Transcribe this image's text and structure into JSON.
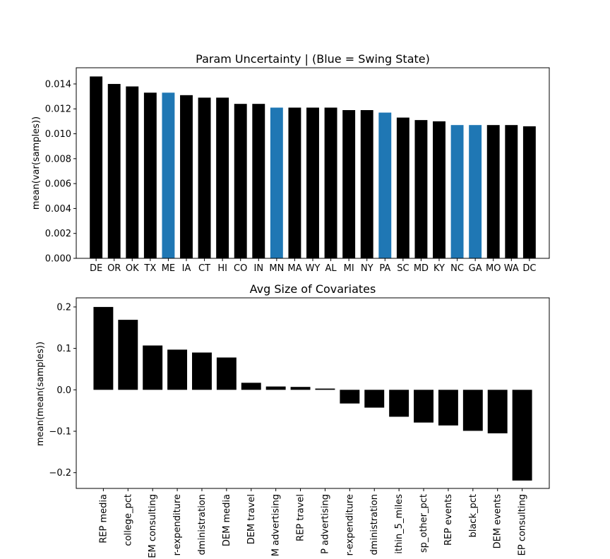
{
  "chart_data": [
    {
      "type": "bar",
      "title": "Param Uncertainty | (Blue = Swing State)",
      "xlabel": "",
      "ylabel": "mean(var(samples))",
      "ylim": [
        0,
        0.0153
      ],
      "yticks": [
        "0.000",
        "0.002",
        "0.004",
        "0.006",
        "0.008",
        "0.010",
        "0.012",
        "0.014"
      ],
      "categories": [
        "DE",
        "OR",
        "OK",
        "TX",
        "ME",
        "IA",
        "CT",
        "HI",
        "CO",
        "IN",
        "MN",
        "MA",
        "WY",
        "AL",
        "MI",
        "NY",
        "PA",
        "SC",
        "MD",
        "KY",
        "NC",
        "GA",
        "MO",
        "WA",
        "DC"
      ],
      "values": [
        0.0146,
        0.014,
        0.0138,
        0.0133,
        0.0133,
        0.0131,
        0.0129,
        0.0129,
        0.0124,
        0.0124,
        0.0121,
        0.0121,
        0.0121,
        0.0121,
        0.0119,
        0.0119,
        0.0117,
        0.0113,
        0.0111,
        0.011,
        0.0107,
        0.0107,
        0.0107,
        0.0107,
        0.0106
      ],
      "swing": [
        false,
        false,
        false,
        false,
        true,
        false,
        false,
        false,
        false,
        false,
        true,
        false,
        false,
        false,
        false,
        false,
        true,
        false,
        false,
        false,
        true,
        true,
        false,
        false,
        false
      ],
      "colors": {
        "default": "#000000",
        "swing": "#1f77b4"
      },
      "grid": false
    },
    {
      "type": "bar",
      "title": "Avg Size of Covariates",
      "xlabel": "",
      "ylabel": "mean(mean(samples))",
      "ylim": [
        -0.238,
        0.222
      ],
      "yticks": [
        "−0.2",
        "−0.1",
        "0.0",
        "0.1",
        "0.2"
      ],
      "categories": [
        "REP media",
        "college_pct",
        "EM consulting",
        "r-expenditure",
        "dministration",
        "DEM media",
        "DEM travel",
        "M advertising",
        "REP travel",
        "P advertising",
        "r-expenditure",
        "dministration",
        "ithin_5_miles",
        "sp_other_pct",
        "REP events",
        "black_pct",
        "DEM events",
        "EP consulting"
      ],
      "values": [
        0.2,
        0.169,
        0.107,
        0.097,
        0.09,
        0.078,
        0.017,
        0.008,
        0.007,
        0.003,
        -0.033,
        -0.043,
        -0.065,
        -0.079,
        -0.086,
        -0.099,
        -0.105,
        -0.219
      ],
      "colors": {
        "default": "#000000"
      },
      "grid": false
    }
  ]
}
